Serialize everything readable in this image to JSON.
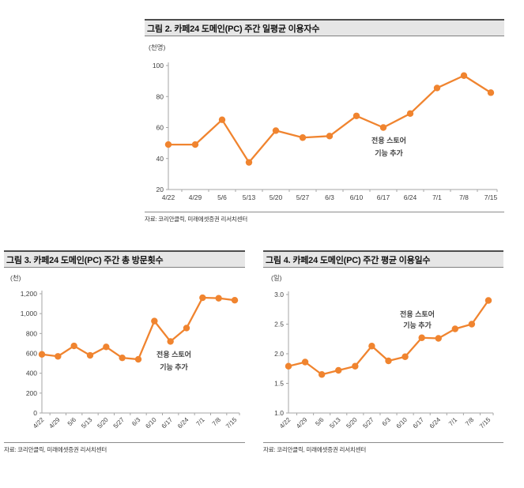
{
  "colors": {
    "accent_line": "#f0842f",
    "annotation": "#fb3e2c",
    "band_bg": "#e6e6e6",
    "band_top_border": "#4d4d4d",
    "band_bottom_border": "#808080",
    "axis": "#a6a6a6",
    "tick_text": "#404040",
    "title_text": "#111111",
    "source_text": "#333333"
  },
  "chart_data": [
    {
      "id": "fig2",
      "type": "line",
      "title": "그림 2. 카페24 도메인(PC) 주간 일평균 이용자수",
      "unit": "(천명)",
      "categories": [
        "4/22",
        "4/29",
        "5/6",
        "5/13",
        "5/20",
        "5/27",
        "6/3",
        "6/10",
        "6/17",
        "6/24",
        "7/1",
        "7/8",
        "7/15"
      ],
      "values": [
        49,
        49,
        65,
        37.5,
        58,
        53.5,
        54.5,
        67.5,
        60,
        69,
        85.5,
        93.5,
        82.5
      ],
      "ylim": [
        20,
        100
      ],
      "yticks": [
        "20",
        "40",
        "60",
        "80",
        "100"
      ],
      "grid": false,
      "legend": "none",
      "annotation": [
        "전용 스토어",
        "기능 추가"
      ],
      "source": "자료: 코리안클릭, 미래에셋증권 리서치센터"
    },
    {
      "id": "fig3",
      "type": "line",
      "title": "그림 3. 카페24 도메인(PC) 주간 총 방문횟수",
      "unit": "(천)",
      "categories": [
        "4/22",
        "4/29",
        "5/6",
        "5/13",
        "5/20",
        "5/27",
        "6/3",
        "6/10",
        "6/17",
        "6/24",
        "7/1",
        "7/8",
        "7/15"
      ],
      "values": [
        590,
        570,
        675,
        580,
        665,
        555,
        540,
        925,
        720,
        855,
        1160,
        1155,
        1135
      ],
      "ylim": [
        0,
        1200
      ],
      "yticks": [
        "0",
        "200",
        "400",
        "600",
        "800",
        "1,000",
        "1,200"
      ],
      "grid": false,
      "legend": "none",
      "annotation": [
        "전용 스토어",
        "기능 추가"
      ],
      "source": "자료: 코리안클릭, 미래에셋증권 리서치센터"
    },
    {
      "id": "fig4",
      "type": "line",
      "title": "그림 4. 카페24 도메인(PC) 주간 평균 이용일수",
      "unit": "(일)",
      "categories": [
        "4/22",
        "4/29",
        "5/6",
        "5/13",
        "5/20",
        "5/27",
        "6/3",
        "6/10",
        "6/17",
        "6/24",
        "7/1",
        "7/8",
        "7/15"
      ],
      "values": [
        1.79,
        1.86,
        1.65,
        1.72,
        1.79,
        2.13,
        1.88,
        1.95,
        2.27,
        2.26,
        2.42,
        2.5,
        2.9
      ],
      "ylim": [
        1.0,
        3.0
      ],
      "yticks": [
        "1.0",
        "1.5",
        "2.0",
        "2.5",
        "3.0"
      ],
      "grid": false,
      "legend": "none",
      "annotation": [
        "전용 스토어",
        "기능 추가"
      ],
      "source": "자료: 코리안클릭, 미래에셋증권 리서치센터"
    }
  ]
}
